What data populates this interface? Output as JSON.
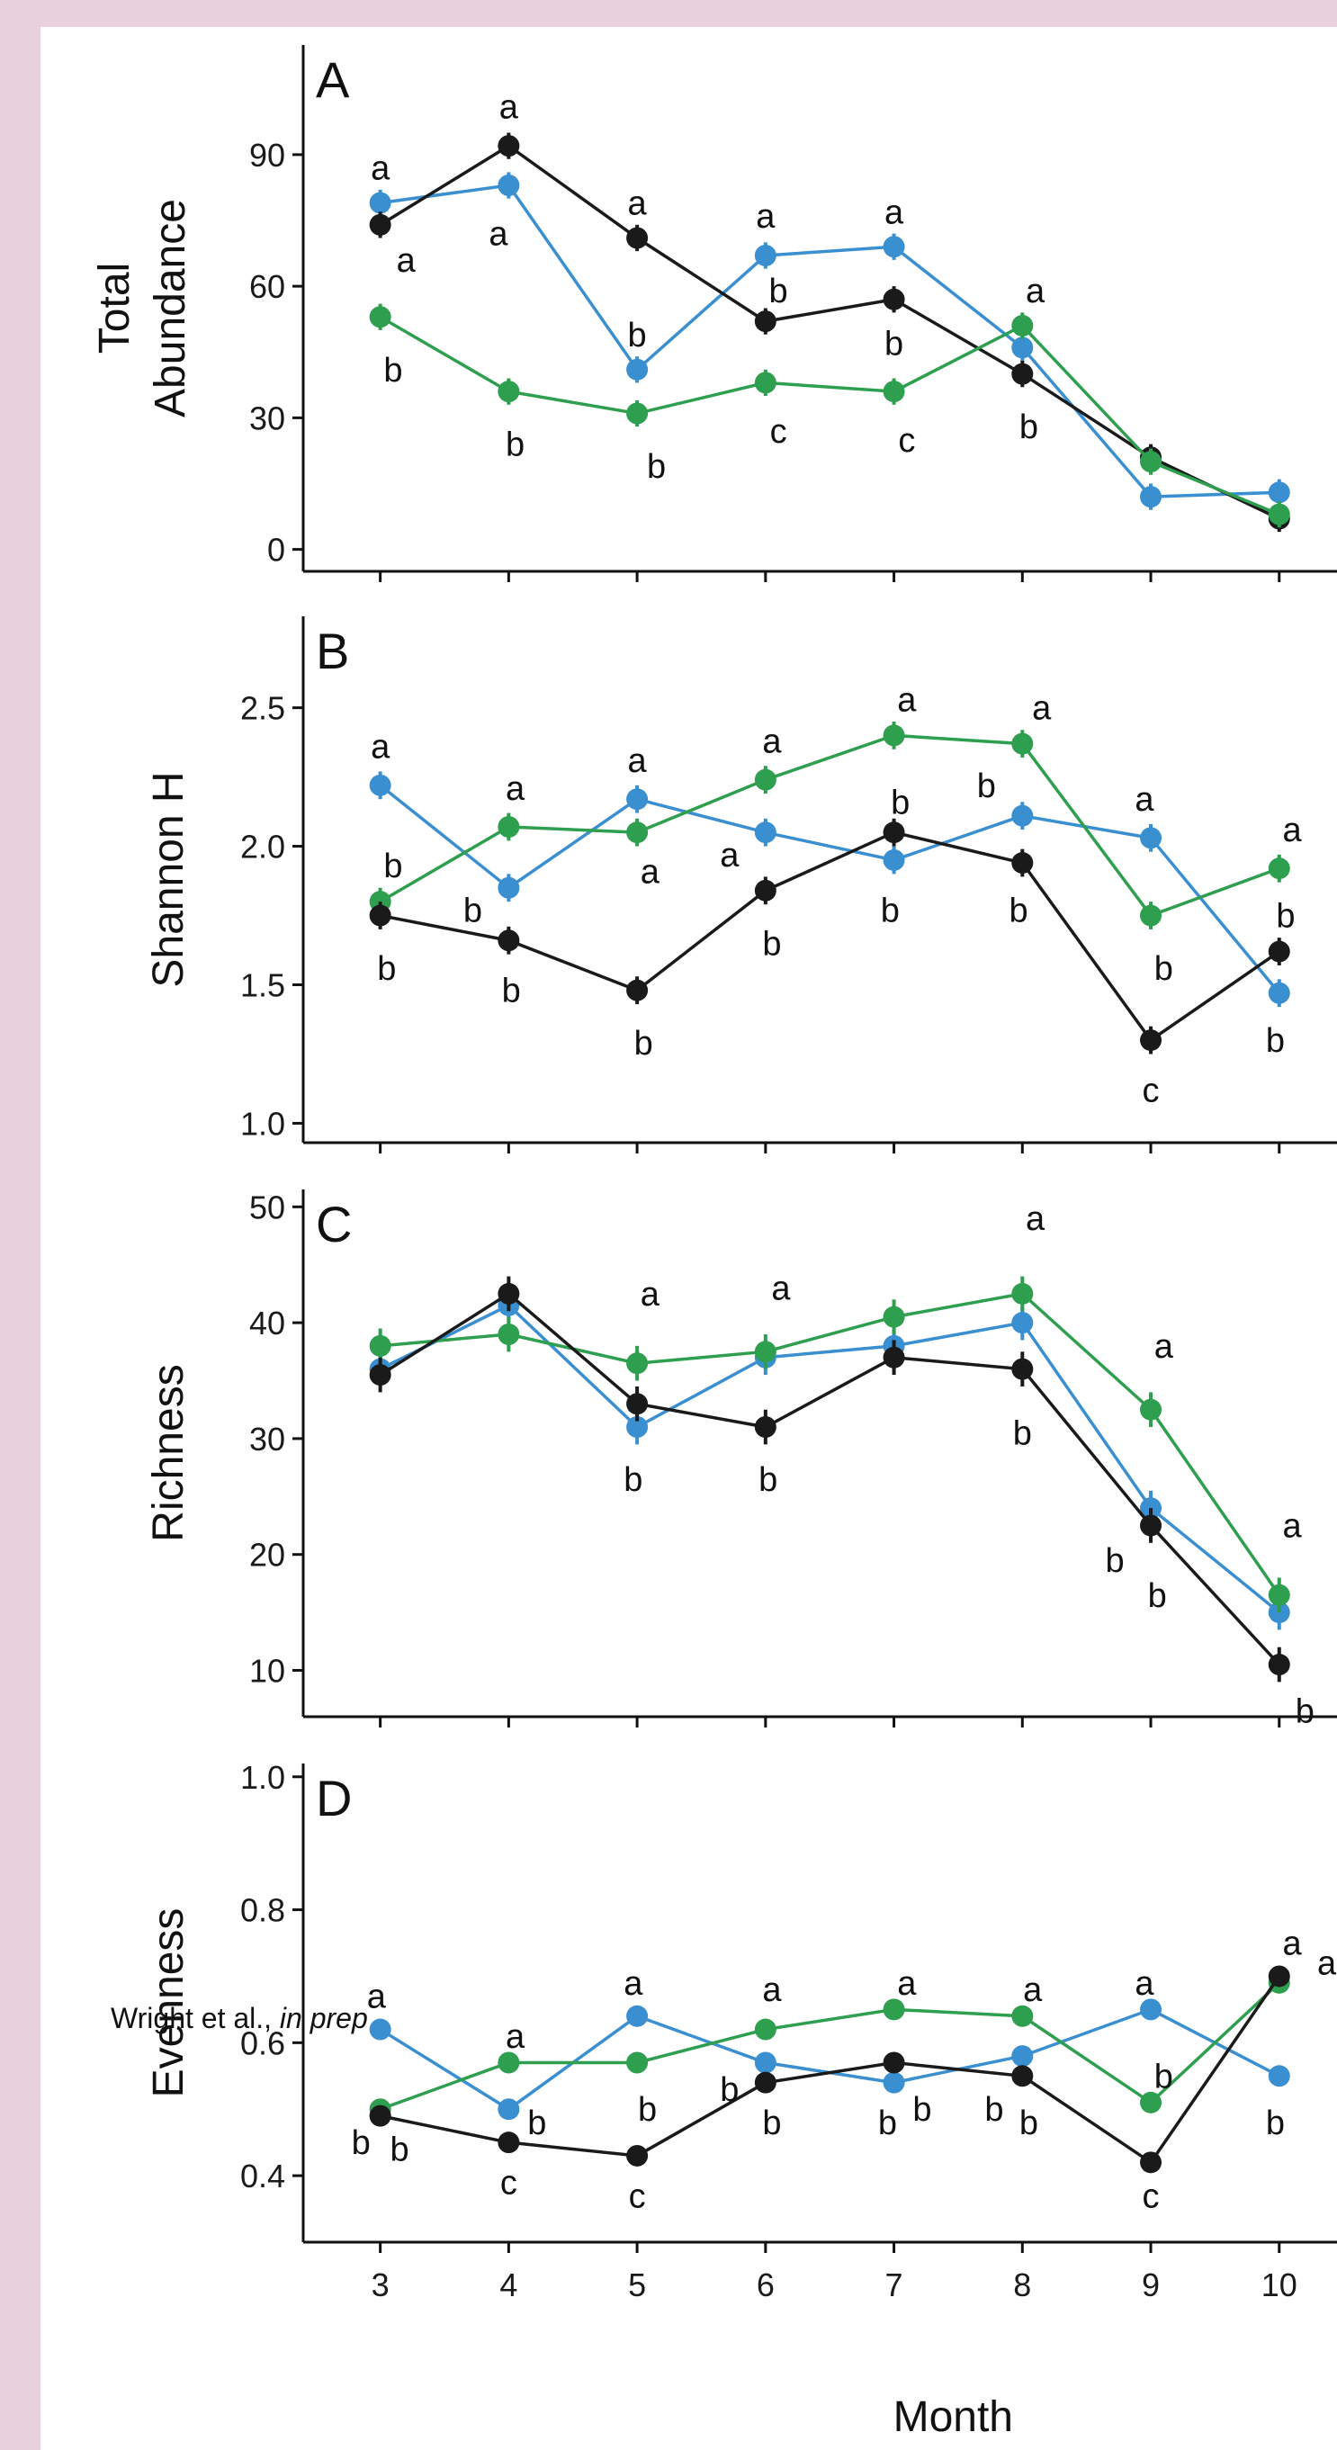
{
  "credit": {
    "authors": "Wright et al., ",
    "status": "in prep"
  },
  "colors": {
    "blue": "#3a8fd0",
    "green": "#2e9e4f",
    "black": "#1a1a1a"
  },
  "chart_data": [
    {
      "type": "line",
      "panel_label": "A",
      "ylabel_lines": [
        "Total",
        "Abundance"
      ],
      "x": [
        3,
        4,
        5,
        6,
        7,
        8,
        9,
        10
      ],
      "xlabel": "",
      "yticks": [
        0,
        30,
        60,
        90
      ],
      "ylim": [
        -5,
        115
      ],
      "series": [
        {
          "color": "blue",
          "values": [
            79,
            83,
            41,
            67,
            69,
            46,
            12,
            13
          ],
          "err": [
            3,
            3,
            3,
            3,
            3,
            3,
            3,
            3
          ]
        },
        {
          "color": "black",
          "values": [
            74,
            92,
            71,
            52,
            57,
            40,
            21,
            7
          ],
          "err": [
            3,
            3,
            3,
            3,
            3,
            3,
            3,
            3
          ]
        },
        {
          "color": "green",
          "values": [
            53,
            36,
            31,
            38,
            36,
            51,
            20,
            8
          ],
          "err": [
            3,
            3,
            3,
            3,
            3,
            3,
            3,
            3
          ]
        }
      ],
      "annotations": [
        {
          "x": 3,
          "y": 87,
          "text": "a"
        },
        {
          "x": 3.2,
          "y": 66,
          "text": "a"
        },
        {
          "x": 3.1,
          "y": 41,
          "text": "b"
        },
        {
          "x": 4,
          "y": 101,
          "text": "a"
        },
        {
          "x": 3.92,
          "y": 72,
          "text": "a"
        },
        {
          "x": 4.05,
          "y": 24,
          "text": "b"
        },
        {
          "x": 5,
          "y": 79,
          "text": "a"
        },
        {
          "x": 5,
          "y": 49,
          "text": "b"
        },
        {
          "x": 5.15,
          "y": 19,
          "text": "b"
        },
        {
          "x": 6,
          "y": 76,
          "text": "a"
        },
        {
          "x": 6.1,
          "y": 59,
          "text": "b"
        },
        {
          "x": 6.1,
          "y": 27,
          "text": "c"
        },
        {
          "x": 7,
          "y": 77,
          "text": "a"
        },
        {
          "x": 7,
          "y": 47,
          "text": "b"
        },
        {
          "x": 7.1,
          "y": 25,
          "text": "c"
        },
        {
          "x": 8.1,
          "y": 59,
          "text": "a"
        },
        {
          "x": 8.05,
          "y": 28,
          "text": "b"
        }
      ]
    },
    {
      "type": "line",
      "panel_label": "B",
      "ylabel_lines": [
        "Shannon H"
      ],
      "x": [
        3,
        4,
        5,
        6,
        7,
        8,
        9,
        10
      ],
      "xlabel": "",
      "yticks": [
        1.0,
        1.5,
        2.0,
        2.5
      ],
      "ytick_labels": [
        "1.0",
        "1.5",
        "2.0",
        "2.5"
      ],
      "ylim": [
        0.93,
        2.83
      ],
      "series": [
        {
          "color": "blue",
          "values": [
            2.22,
            1.85,
            2.17,
            2.05,
            1.95,
            2.11,
            2.03,
            1.47
          ],
          "err": [
            0.05,
            0.05,
            0.05,
            0.05,
            0.05,
            0.05,
            0.05,
            0.05
          ]
        },
        {
          "color": "green",
          "values": [
            1.8,
            2.07,
            2.05,
            2.24,
            2.4,
            2.37,
            1.75,
            1.92
          ],
          "err": [
            0.05,
            0.05,
            0.05,
            0.05,
            0.05,
            0.05,
            0.05,
            0.05
          ]
        },
        {
          "color": "black",
          "values": [
            1.75,
            1.66,
            1.48,
            1.84,
            2.05,
            1.94,
            1.3,
            1.62
          ],
          "err": [
            0.05,
            0.05,
            0.05,
            0.05,
            0.05,
            0.05,
            0.05,
            0.05
          ]
        }
      ],
      "annotations": [
        {
          "x": 3,
          "y": 2.36,
          "text": "a"
        },
        {
          "x": 3.1,
          "y": 1.93,
          "text": "b"
        },
        {
          "x": 3.05,
          "y": 1.56,
          "text": "b"
        },
        {
          "x": 4.05,
          "y": 2.21,
          "text": "a"
        },
        {
          "x": 3.72,
          "y": 1.77,
          "text": "b"
        },
        {
          "x": 4.02,
          "y": 1.48,
          "text": "b"
        },
        {
          "x": 5,
          "y": 2.31,
          "text": "a"
        },
        {
          "x": 5.1,
          "y": 1.91,
          "text": "a"
        },
        {
          "x": 5.05,
          "y": 1.29,
          "text": "b"
        },
        {
          "x": 6.05,
          "y": 2.38,
          "text": "a"
        },
        {
          "x": 5.72,
          "y": 1.97,
          "text": "a"
        },
        {
          "x": 6.05,
          "y": 1.65,
          "text": "b"
        },
        {
          "x": 7.1,
          "y": 2.53,
          "text": "a"
        },
        {
          "x": 7.05,
          "y": 2.16,
          "text": "b"
        },
        {
          "x": 6.97,
          "y": 1.77,
          "text": "b"
        },
        {
          "x": 8.15,
          "y": 2.5,
          "text": "a"
        },
        {
          "x": 7.72,
          "y": 2.22,
          "text": "b"
        },
        {
          "x": 7.97,
          "y": 1.77,
          "text": "b"
        },
        {
          "x": 8.95,
          "y": 2.17,
          "text": "a"
        },
        {
          "x": 9.1,
          "y": 1.56,
          "text": "b"
        },
        {
          "x": 9,
          "y": 1.12,
          "text": "c"
        },
        {
          "x": 10.1,
          "y": 2.06,
          "text": "a"
        },
        {
          "x": 10.05,
          "y": 1.75,
          "text": "b"
        },
        {
          "x": 9.97,
          "y": 1.3,
          "text": "b"
        }
      ]
    },
    {
      "type": "line",
      "panel_label": "C",
      "ylabel_lines": [
        "Richness"
      ],
      "x": [
        3,
        4,
        5,
        6,
        7,
        8,
        9,
        10
      ],
      "xlabel": "",
      "yticks": [
        10,
        20,
        30,
        40,
        50
      ],
      "ylim": [
        6,
        51.5
      ],
      "series": [
        {
          "color": "blue",
          "values": [
            36,
            41.5,
            31,
            37,
            38,
            40,
            24,
            15
          ],
          "err": [
            1.5,
            1.5,
            1.5,
            1.5,
            1.5,
            1.5,
            1.5,
            1.5
          ]
        },
        {
          "color": "green",
          "values": [
            38,
            39,
            36.5,
            37.5,
            40.5,
            42.5,
            32.5,
            16.5
          ],
          "err": [
            1.5,
            1.5,
            1.5,
            1.5,
            1.5,
            1.5,
            1.5,
            1.5
          ]
        },
        {
          "color": "black",
          "values": [
            35.5,
            42.5,
            33,
            31,
            37,
            36,
            22.5,
            10.5
          ],
          "err": [
            1.5,
            1.5,
            1.5,
            1.5,
            1.5,
            1.5,
            1.5,
            1.5
          ]
        }
      ],
      "annotations": [
        {
          "x": 5.1,
          "y": 42.5,
          "text": "a"
        },
        {
          "x": 4.97,
          "y": 26.5,
          "text": "b"
        },
        {
          "x": 6.12,
          "y": 43,
          "text": "a"
        },
        {
          "x": 6.02,
          "y": 26.5,
          "text": "b"
        },
        {
          "x": 8.1,
          "y": 49,
          "text": "a"
        },
        {
          "x": 8,
          "y": 30.5,
          "text": "b"
        },
        {
          "x": 9.1,
          "y": 38,
          "text": "a"
        },
        {
          "x": 8.72,
          "y": 19.5,
          "text": "b"
        },
        {
          "x": 9.05,
          "y": 16.5,
          "text": "b"
        },
        {
          "x": 10.1,
          "y": 22.5,
          "text": "a"
        },
        {
          "x": 10.2,
          "y": 6.5,
          "text": "b"
        }
      ]
    },
    {
      "type": "line",
      "panel_label": "D",
      "ylabel_lines": [
        "Evenness"
      ],
      "x": [
        3,
        4,
        5,
        6,
        7,
        8,
        9,
        10
      ],
      "xlabel": "Month",
      "xtick_labels": [
        "3",
        "4",
        "5",
        "6",
        "7",
        "8",
        "9",
        "10"
      ],
      "yticks": [
        0.4,
        0.6,
        0.8,
        1.0
      ],
      "ytick_labels": [
        "0.4",
        "0.6",
        "0.8",
        "1.0"
      ],
      "ylim": [
        0.3,
        1.02
      ],
      "series": [
        {
          "color": "blue",
          "values": [
            0.62,
            0.5,
            0.64,
            0.57,
            0.54,
            0.58,
            0.65,
            0.55
          ],
          "err": [
            0.01,
            0.01,
            0.01,
            0.01,
            0.01,
            0.01,
            0.01,
            0.01
          ]
        },
        {
          "color": "green",
          "values": [
            0.5,
            0.57,
            0.57,
            0.62,
            0.65,
            0.64,
            0.51,
            0.69
          ],
          "err": [
            0.01,
            0.01,
            0.01,
            0.01,
            0.01,
            0.01,
            0.01,
            0.01
          ]
        },
        {
          "color": "black",
          "values": [
            0.49,
            0.45,
            0.43,
            0.54,
            0.57,
            0.55,
            0.42,
            0.7
          ],
          "err": [
            0.01,
            0.01,
            0.01,
            0.01,
            0.01,
            0.01,
            0.01,
            0.01
          ]
        }
      ],
      "annotations": [
        {
          "x": 2.97,
          "y": 0.67,
          "text": "a"
        },
        {
          "x": 2.85,
          "y": 0.45,
          "text": "b"
        },
        {
          "x": 3.15,
          "y": 0.44,
          "text": "b"
        },
        {
          "x": 4.05,
          "y": 0.61,
          "text": "a"
        },
        {
          "x": 4.22,
          "y": 0.48,
          "text": "b"
        },
        {
          "x": 4.0,
          "y": 0.39,
          "text": "c"
        },
        {
          "x": 4.97,
          "y": 0.69,
          "text": "a"
        },
        {
          "x": 5.08,
          "y": 0.5,
          "text": "b"
        },
        {
          "x": 5,
          "y": 0.37,
          "text": "c"
        },
        {
          "x": 6.05,
          "y": 0.68,
          "text": "a"
        },
        {
          "x": 5.72,
          "y": 0.53,
          "text": "b"
        },
        {
          "x": 6.05,
          "y": 0.48,
          "text": "b"
        },
        {
          "x": 7.1,
          "y": 0.69,
          "text": "a"
        },
        {
          "x": 6.95,
          "y": 0.48,
          "text": "b"
        },
        {
          "x": 7.22,
          "y": 0.5,
          "text": "b"
        },
        {
          "x": 8.08,
          "y": 0.68,
          "text": "a"
        },
        {
          "x": 7.78,
          "y": 0.5,
          "text": "b"
        },
        {
          "x": 8.05,
          "y": 0.48,
          "text": "b"
        },
        {
          "x": 8.95,
          "y": 0.69,
          "text": "a"
        },
        {
          "x": 9.1,
          "y": 0.55,
          "text": "b"
        },
        {
          "x": 9.0,
          "y": 0.37,
          "text": "c"
        },
        {
          "x": 9.97,
          "y": 0.48,
          "text": "b"
        },
        {
          "x": 10.1,
          "y": 0.75,
          "text": "a"
        },
        {
          "x": 10.37,
          "y": 0.72,
          "text": "a"
        }
      ]
    }
  ]
}
